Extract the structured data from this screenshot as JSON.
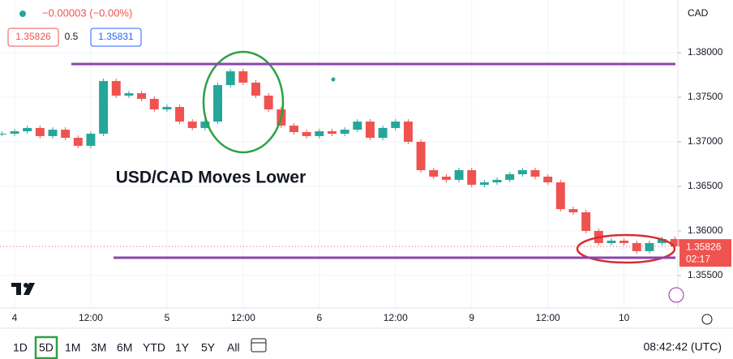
{
  "chart_data": {
    "type": "candlestick",
    "title": "USD/CAD Moves Lower",
    "change": "−0.00003 (−0.00%)",
    "bid": "1.35826",
    "spread": "0.5",
    "ask": "1.35831",
    "currency": "CAD",
    "last_price": 1.35826,
    "countdown": "02:17",
    "x": [
      -2,
      0,
      2,
      4,
      6,
      8,
      10,
      12,
      14,
      16,
      18,
      20,
      22,
      24,
      26,
      28,
      30,
      32,
      34,
      36,
      38,
      40,
      42,
      44,
      46,
      48,
      50,
      52,
      54,
      56,
      58,
      60,
      62,
      64,
      66,
      68,
      70,
      72,
      74,
      76,
      78,
      80,
      82,
      84,
      86,
      88,
      90,
      92,
      94,
      96,
      98,
      100,
      102,
      104
    ],
    "values": [
      1.37091,
      1.37118,
      1.37155,
      1.37064,
      1.37136,
      1.37045,
      1.36955,
      1.37091,
      1.37682,
      1.37518,
      1.37545,
      1.37482,
      1.37364,
      1.37391,
      1.37227,
      1.37155,
      1.37227,
      1.37636,
      1.37791,
      1.37664,
      1.37518,
      1.37364,
      1.37182,
      1.37109,
      1.37064,
      1.37118,
      1.37091,
      1.37136,
      1.37227,
      1.37045,
      1.37155,
      1.37227,
      1.37,
      1.36682,
      1.36609,
      1.36573,
      1.36682,
      1.36518,
      1.36545,
      1.36573,
      1.36636,
      1.36682,
      1.36609,
      1.36545,
      1.36245,
      1.36209,
      1.36,
      1.35864,
      1.35891,
      1.35864,
      1.35773,
      1.35864,
      1.35909,
      1.35826
    ],
    "up_color": "#26a69a",
    "down_color": "#ef5350",
    "hlines": [
      {
        "value": 1.37873,
        "color": "#8e44ad"
      },
      {
        "value": 1.357,
        "color": "#8e44ad"
      }
    ],
    "xlim": [
      -2.3,
      104.35
    ],
    "xticks": [
      {
        "value": 0,
        "label": "4"
      },
      {
        "value": 12,
        "label": "12:00"
      },
      {
        "value": 24,
        "label": "5"
      },
      {
        "value": 36,
        "label": "12:00"
      },
      {
        "value": 48,
        "label": "6"
      },
      {
        "value": 60,
        "label": "12:00"
      },
      {
        "value": 72,
        "label": "9"
      },
      {
        "value": 84,
        "label": "12:00"
      },
      {
        "value": 96,
        "label": "10"
      }
    ],
    "ylim": [
      1.35136,
      1.38591
    ],
    "yticks": [
      {
        "value": 1.38,
        "label": "1.38000"
      },
      {
        "value": 1.375,
        "label": "1.37500"
      },
      {
        "value": 1.37,
        "label": "1.37000"
      },
      {
        "value": 1.365,
        "label": "1.36500"
      },
      {
        "value": 1.36,
        "label": "1.36000"
      },
      {
        "value": 1.355,
        "label": "1.35500"
      }
    ],
    "ranges": [
      "1D",
      "5D",
      "1M",
      "3M",
      "6M",
      "YTD",
      "1Y",
      "5Y",
      "All"
    ],
    "selected_range": 1,
    "clock": "08:42:42 (UTC)"
  }
}
